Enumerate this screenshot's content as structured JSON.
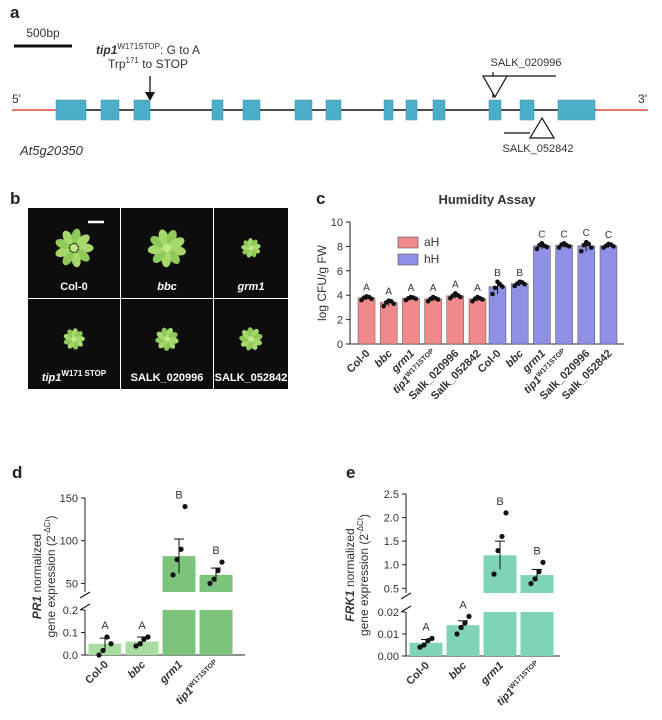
{
  "panel_labels": {
    "a": "a",
    "b": "b",
    "c": "c",
    "d": "d",
    "e": "e"
  },
  "gene": {
    "scale_label": "500bp",
    "mutation_name": "tip1",
    "mutation_sup": "W171STOP",
    "mutation_change": ": G to A",
    "mutation_desc_pre": "Trp",
    "mutation_desc_sup": "171",
    "mutation_desc_post": " to STOP",
    "salk1": "SALK_020996",
    "salk2": "SALK_052842",
    "end5": "5'",
    "end3": "3'",
    "locus": "At5g20350"
  },
  "photos": {
    "labels": [
      {
        "text": "Col-0",
        "italic": false
      },
      {
        "text": "bbc",
        "italic": true
      },
      {
        "text": "grm1",
        "italic": true
      },
      {
        "text": "tip1",
        "sup": "W171 STOP",
        "italic": true
      },
      {
        "text": "SALK_020996",
        "italic": false
      },
      {
        "text": "SALK_052842",
        "italic": false
      }
    ]
  },
  "colors": {
    "exon": "#4bafc9",
    "line_red": "#d94a3c",
    "ah": "#f08a8a",
    "hh": "#8f8fe6",
    "green_dark": "#7cc47c",
    "green_light": "#a8dca0",
    "teal": "#7fd3b6",
    "photo_bg": "#0d0d0d"
  },
  "chart_data": [
    {
      "type": "bar",
      "title": "Humidity Assay",
      "ylabel": "log CFU/g FW",
      "ylim": [
        0,
        10
      ],
      "yticks": [
        "0",
        "2",
        "4",
        "6",
        "8",
        "10"
      ],
      "categories": [
        "Col-0",
        "bbc",
        "grm1",
        "tip1",
        "Salk_020996",
        "Salk_052842"
      ],
      "category_sup": [
        "",
        "",
        "",
        "W171STOP",
        "",
        ""
      ],
      "legend": [
        {
          "name": "aH"
        },
        {
          "name": "hH"
        }
      ],
      "series": [
        {
          "name": "aH",
          "values": [
            3.8,
            3.4,
            3.75,
            3.7,
            3.95,
            3.7
          ],
          "letters": [
            "A",
            "A",
            "A",
            "A",
            "A",
            "A"
          ],
          "points": [
            [
              3.6,
              3.8,
              3.9,
              3.85,
              3.7
            ],
            [
              3.1,
              3.4,
              3.55,
              3.5,
              3.3
            ],
            [
              3.6,
              3.75,
              3.85,
              3.8,
              3.7
            ],
            [
              3.5,
              3.7,
              3.85,
              3.75,
              3.65
            ],
            [
              3.75,
              3.95,
              4.15,
              4.0,
              3.85
            ],
            [
              3.5,
              3.7,
              3.85,
              3.75,
              3.65
            ]
          ]
        },
        {
          "name": "hH",
          "values": [
            4.7,
            4.95,
            8.05,
            8.1,
            8.05,
            8.05
          ],
          "letters": [
            "B",
            "B",
            "C",
            "C",
            "C",
            "C"
          ],
          "points": [
            [
              4.1,
              4.6,
              5.1,
              4.9,
              4.7
            ],
            [
              4.75,
              4.95,
              5.1,
              5.05,
              4.9
            ],
            [
              7.8,
              8.1,
              8.25,
              8.05,
              7.95
            ],
            [
              7.9,
              8.15,
              8.25,
              8.1,
              8.0
            ],
            [
              7.6,
              8.1,
              8.35,
              8.2,
              7.9
            ],
            [
              7.9,
              8.05,
              8.2,
              8.15,
              8.0
            ]
          ]
        }
      ]
    },
    {
      "type": "bar",
      "ylabel_gene": "PR1",
      "ylabel_rest": " normalized",
      "ylabel2_pre": "gene expression (2",
      "ylabel2_sup": "-ΔCt",
      "ylabel2_post": ")",
      "categories": [
        "Col-0",
        "bbc",
        "grm1",
        "tip1"
      ],
      "category_sup": [
        "",
        "",
        "",
        "W171STOP"
      ],
      "lower_ticks": [
        "0.0",
        "0.1",
        "0.2"
      ],
      "upper_ticks": [
        "50",
        "100",
        "150"
      ],
      "values": [
        0.05,
        0.06,
        82,
        60
      ],
      "errors": [
        0.025,
        0.02,
        20,
        8
      ],
      "letters": [
        "A",
        "A",
        "B",
        "B"
      ],
      "points": [
        [
          0.0,
          0.02,
          0.08,
          0.05
        ],
        [
          0.04,
          0.05,
          0.07,
          0.08
        ],
        [
          60,
          78,
          90,
          140
        ],
        [
          50,
          55,
          65,
          75
        ]
      ]
    },
    {
      "type": "bar",
      "ylabel_gene": "FRK1",
      "ylabel_rest": " normalized",
      "ylabel2_pre": "gene expression (2",
      "ylabel2_sup": "-ΔCt",
      "ylabel2_post": ")",
      "categories": [
        "Col-0",
        "bbc",
        "grm1",
        "tip1"
      ],
      "category_sup": [
        "",
        "",
        "",
        "W171STOP"
      ],
      "lower_ticks": [
        "0.00",
        "0.01",
        "0.02"
      ],
      "upper_ticks": [
        "0.5",
        "1.0",
        "1.5",
        "2.0",
        "2.5"
      ],
      "values": [
        0.006,
        0.014,
        1.2,
        0.78
      ],
      "errors": [
        0.0015,
        0.002,
        0.3,
        0.12
      ],
      "letters": [
        "A",
        "A",
        "B",
        "B"
      ],
      "points": [
        [
          0.004,
          0.005,
          0.007,
          0.008
        ],
        [
          0.01,
          0.013,
          0.015,
          0.018
        ],
        [
          0.8,
          1.3,
          1.6,
          2.1
        ],
        [
          0.6,
          0.7,
          0.85,
          1.05
        ]
      ]
    }
  ]
}
